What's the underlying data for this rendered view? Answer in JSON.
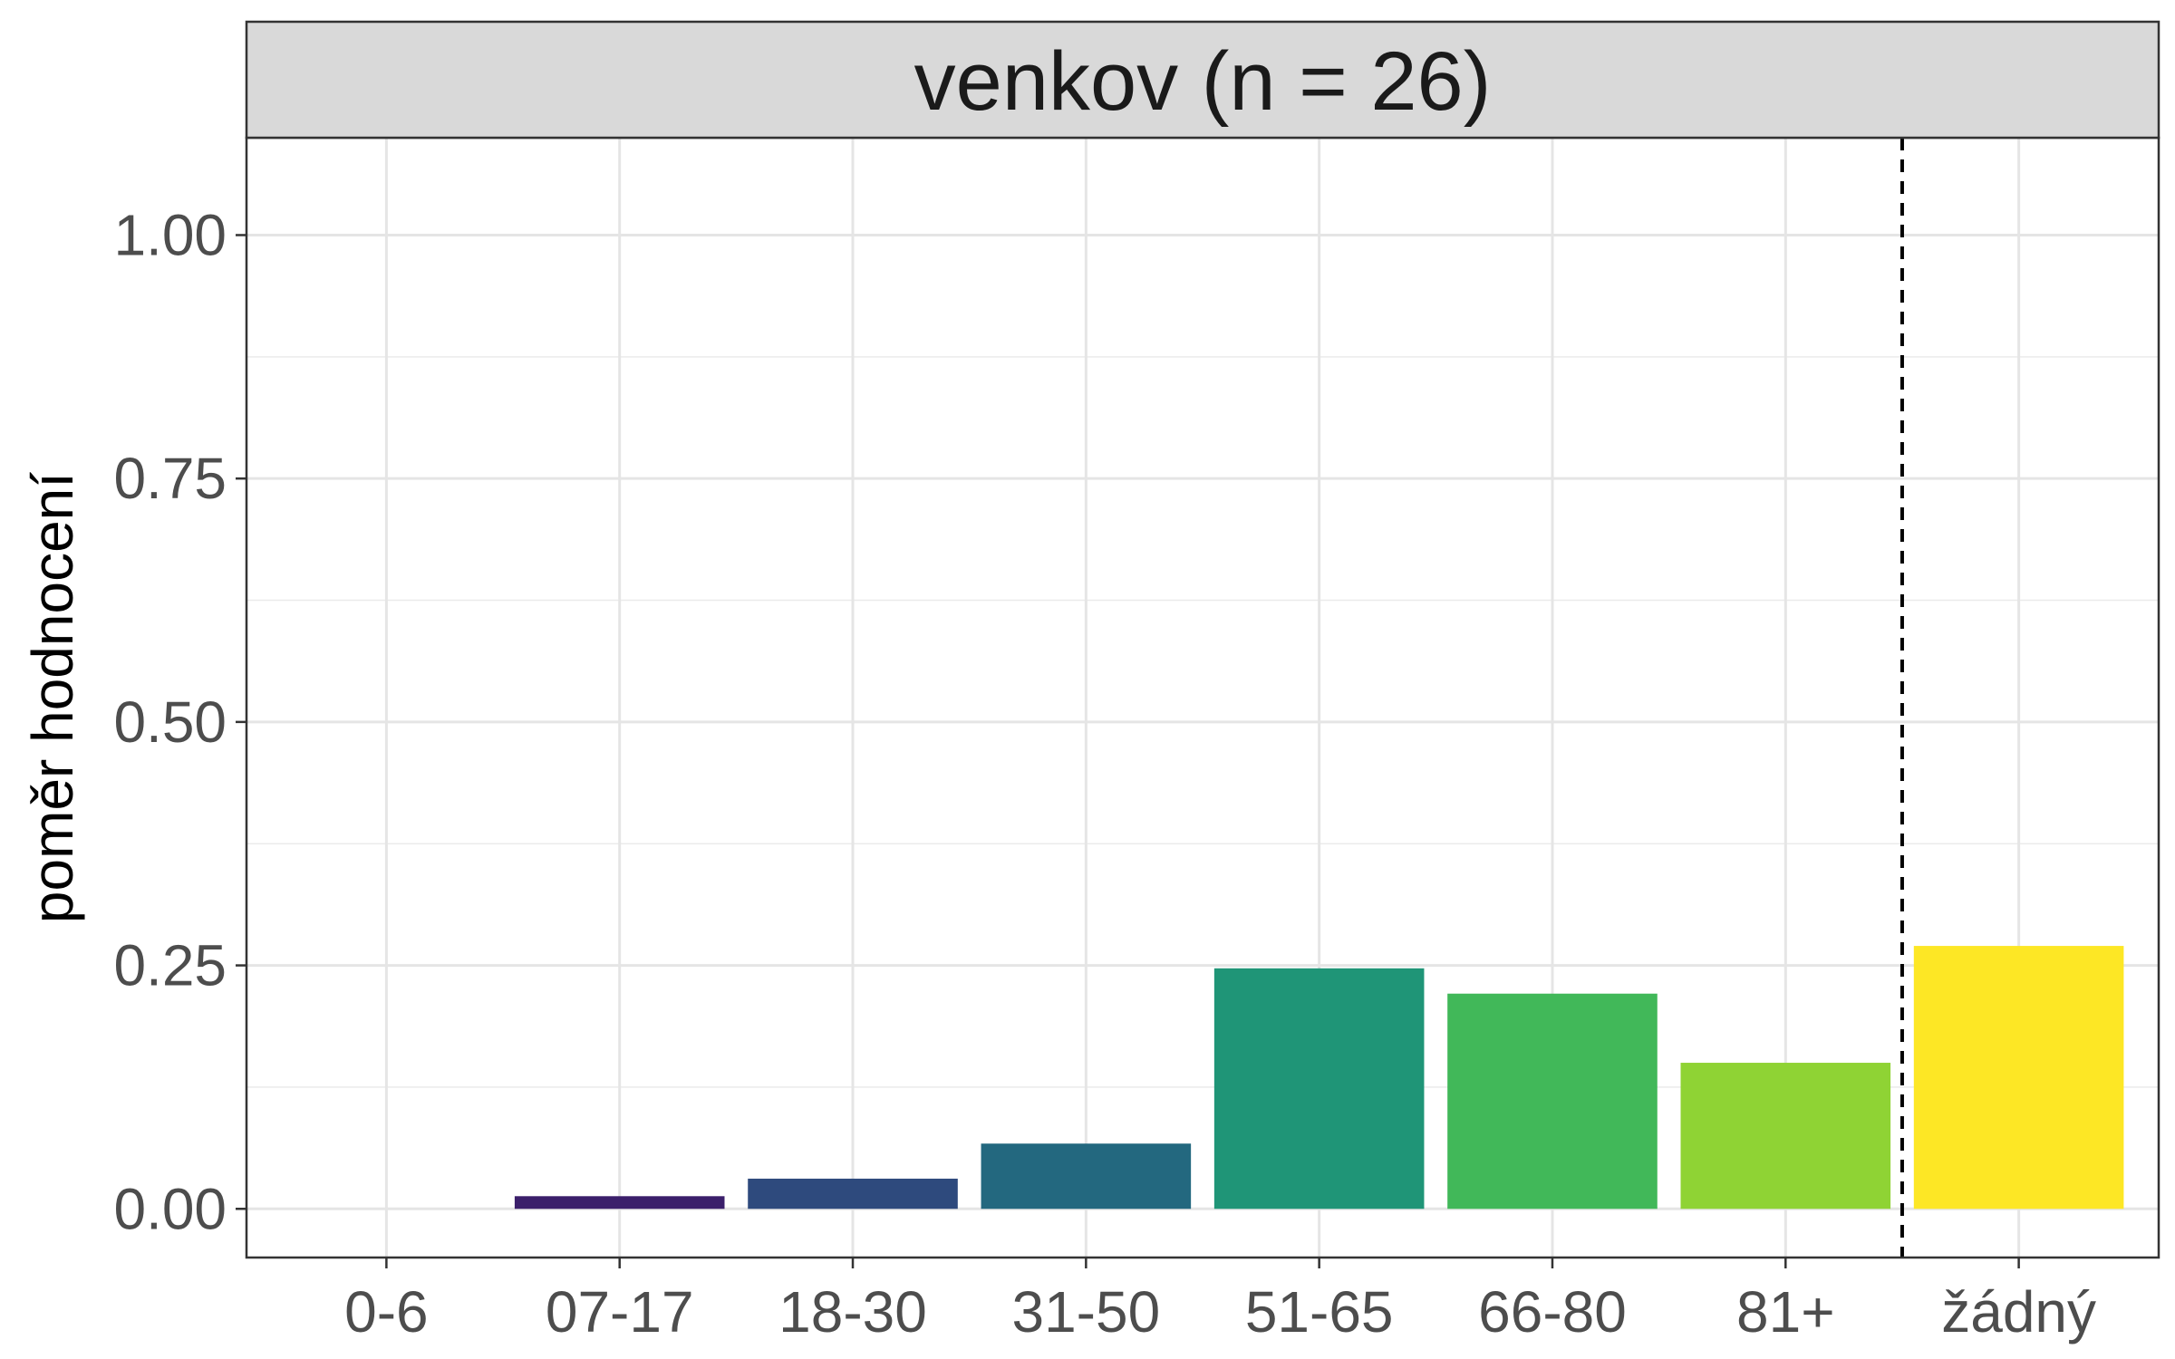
{
  "chart_data": {
    "type": "bar",
    "title": "venkov (n = 26)",
    "xlabel": "",
    "ylabel": "poměr hodnocení",
    "categories": [
      "0-6",
      "07-17",
      "18-30",
      "31-50",
      "51-65",
      "66-80",
      "81+",
      "žádný"
    ],
    "values": [
      0.0,
      0.013,
      0.031,
      0.067,
      0.247,
      0.221,
      0.15,
      0.27
    ],
    "colors": [
      "#440154",
      "#3B1F6B",
      "#2E4A7D",
      "#23687F",
      "#1F9577",
      "#41B859",
      "#8FD334",
      "#FDE725"
    ],
    "ylim": [
      -0.05,
      1.1
    ],
    "yticks": [
      0.0,
      0.25,
      0.5,
      0.75,
      1.0
    ],
    "ytick_labels": [
      "0.00",
      "0.25",
      "0.50",
      "0.75",
      "1.00"
    ],
    "separator_after_category": "81+",
    "grid": true,
    "legend": "none"
  }
}
